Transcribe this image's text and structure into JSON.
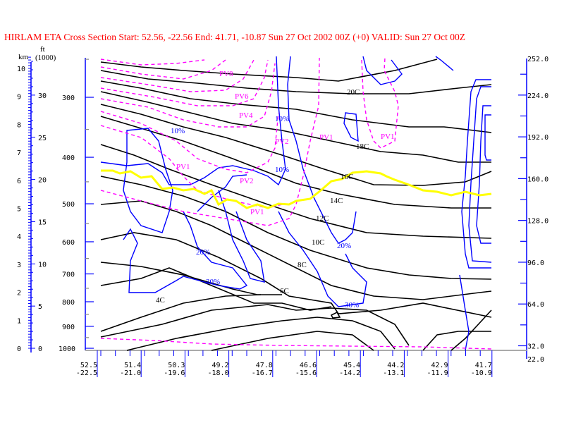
{
  "title": "HIRLAM ETA Cross Section Start:  52.56, -22.56 End:  41.71, -10.87 Sun 27 Oct 2002 00Z  (+0) VALID: Sun 27 Oct 00Z",
  "colors": {
    "title": "#ff0000",
    "isotherm": "#000000",
    "rh": "#0000ff",
    "pv": "#ff00ff",
    "tropopause": "#ffff00",
    "axis": "#0000ff"
  },
  "chart_data": {
    "type": "contour-cross-section",
    "title": "HIRLAM ETA Cross Section",
    "left_axes": {
      "km_label": "km",
      "ft_label": "ft",
      "ft_unit": "(1000)",
      "km_ticks": [
        "0",
        "1",
        "2",
        "3",
        "4",
        "5",
        "6",
        "7",
        "8",
        "9",
        "10"
      ],
      "ft_ticks": [
        "0",
        "5",
        "10",
        "15",
        "20",
        "25",
        "30"
      ],
      "pressure_ticks": [
        "300",
        "400",
        "500",
        "600",
        "700",
        "800",
        "900",
        "1000"
      ]
    },
    "right_axis": {
      "ticks": [
        "252.0",
        "224.0",
        "192.0",
        "160.0",
        "128.0",
        "96.0",
        "64.0",
        "32.0",
        "22.0"
      ],
      "range": [
        22,
        252
      ]
    },
    "x_axis": {
      "lat": [
        "52.5",
        "51.4",
        "50.3",
        "49.2",
        "47.8",
        "46.6",
        "45.4",
        "44.2",
        "42.9",
        "41.7"
      ],
      "lon": [
        "-22.5",
        "-21.0",
        "-19.6",
        "-18.0",
        "-16.7",
        "-15.6",
        "-14.2",
        "-13.1",
        "-11.9",
        "-10.9"
      ]
    },
    "isotherm_labels": [
      "20C",
      "18C",
      "16C",
      "14C",
      "12C",
      "10C",
      "8C",
      "6C",
      "4C"
    ],
    "rh_labels": [
      "10%",
      "10%",
      "10%",
      "20%",
      "20%",
      "30%",
      "30%"
    ],
    "pv_labels": [
      "PV8",
      "PV6",
      "PV4",
      "PV2",
      "PV2",
      "PV1",
      "PV1",
      "PV1",
      "PV1"
    ]
  }
}
